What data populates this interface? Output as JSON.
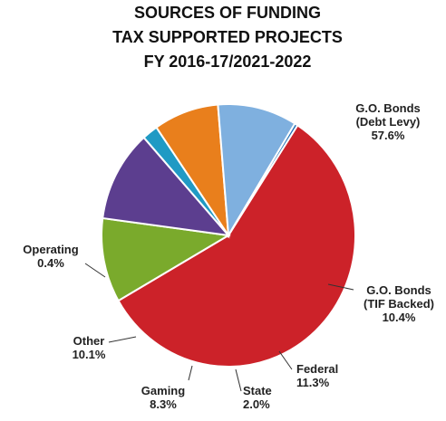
{
  "chart_data": {
    "type": "pie",
    "title": [
      "SOURCES OF FUNDING",
      "TAX SUPPORTED PROJECTS",
      "FY 2016-17/2021-2022"
    ],
    "slices": [
      {
        "label": [
          "G.O. Bonds",
          "(Debt Levy)"
        ],
        "value": 57.6,
        "value_label": "57.6%",
        "color": "#cc2229"
      },
      {
        "label": [
          "G.O. Bonds",
          "(TIF Backed)"
        ],
        "value": 10.4,
        "value_label": "10.4%",
        "color": "#7aaa2c"
      },
      {
        "label": [
          "Federal"
        ],
        "value": 11.3,
        "value_label": "11.3%",
        "color": "#5c3e8f"
      },
      {
        "label": [
          "State"
        ],
        "value": 2.0,
        "value_label": "2.0%",
        "color": "#1f9ac4"
      },
      {
        "label": [
          "Gaming"
        ],
        "value": 8.3,
        "value_label": "8.3%",
        "color": "#e97f1c"
      },
      {
        "label": [
          "Other"
        ],
        "value": 10.1,
        "value_label": "10.1%",
        "color": "#7fb0df"
      },
      {
        "label": [
          "Operating"
        ],
        "value": 0.4,
        "value_label": "0.4%",
        "color": "#1f6fb5"
      }
    ],
    "start_angle_deg": 303,
    "direction": "clockwise"
  }
}
